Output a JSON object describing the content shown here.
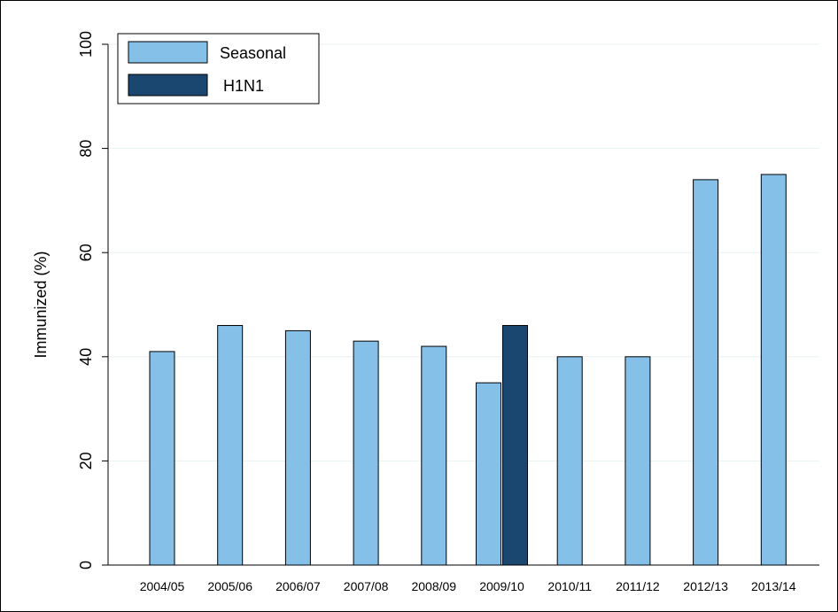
{
  "chart_data": {
    "type": "bar",
    "title": "",
    "xlabel": "",
    "ylabel": "Immunized (%)",
    "ylim": [
      0,
      100
    ],
    "yticks": [
      0,
      20,
      40,
      60,
      80,
      100
    ],
    "grid": true,
    "legend_position": "top-left",
    "categories": [
      "2004/05",
      "2005/06",
      "2006/07",
      "2007/08",
      "2008/09",
      "2009/10",
      "2010/11",
      "2011/12",
      "2012/13",
      "2013/14"
    ],
    "series": [
      {
        "name": "Seasonal",
        "color": "#85C0E9",
        "values": [
          41,
          46,
          45,
          43,
          42,
          35,
          40,
          40,
          74,
          75
        ]
      },
      {
        "name": "H1N1",
        "color": "#1A476F",
        "values": [
          null,
          null,
          null,
          null,
          null,
          46,
          null,
          null,
          null,
          null
        ]
      }
    ]
  }
}
